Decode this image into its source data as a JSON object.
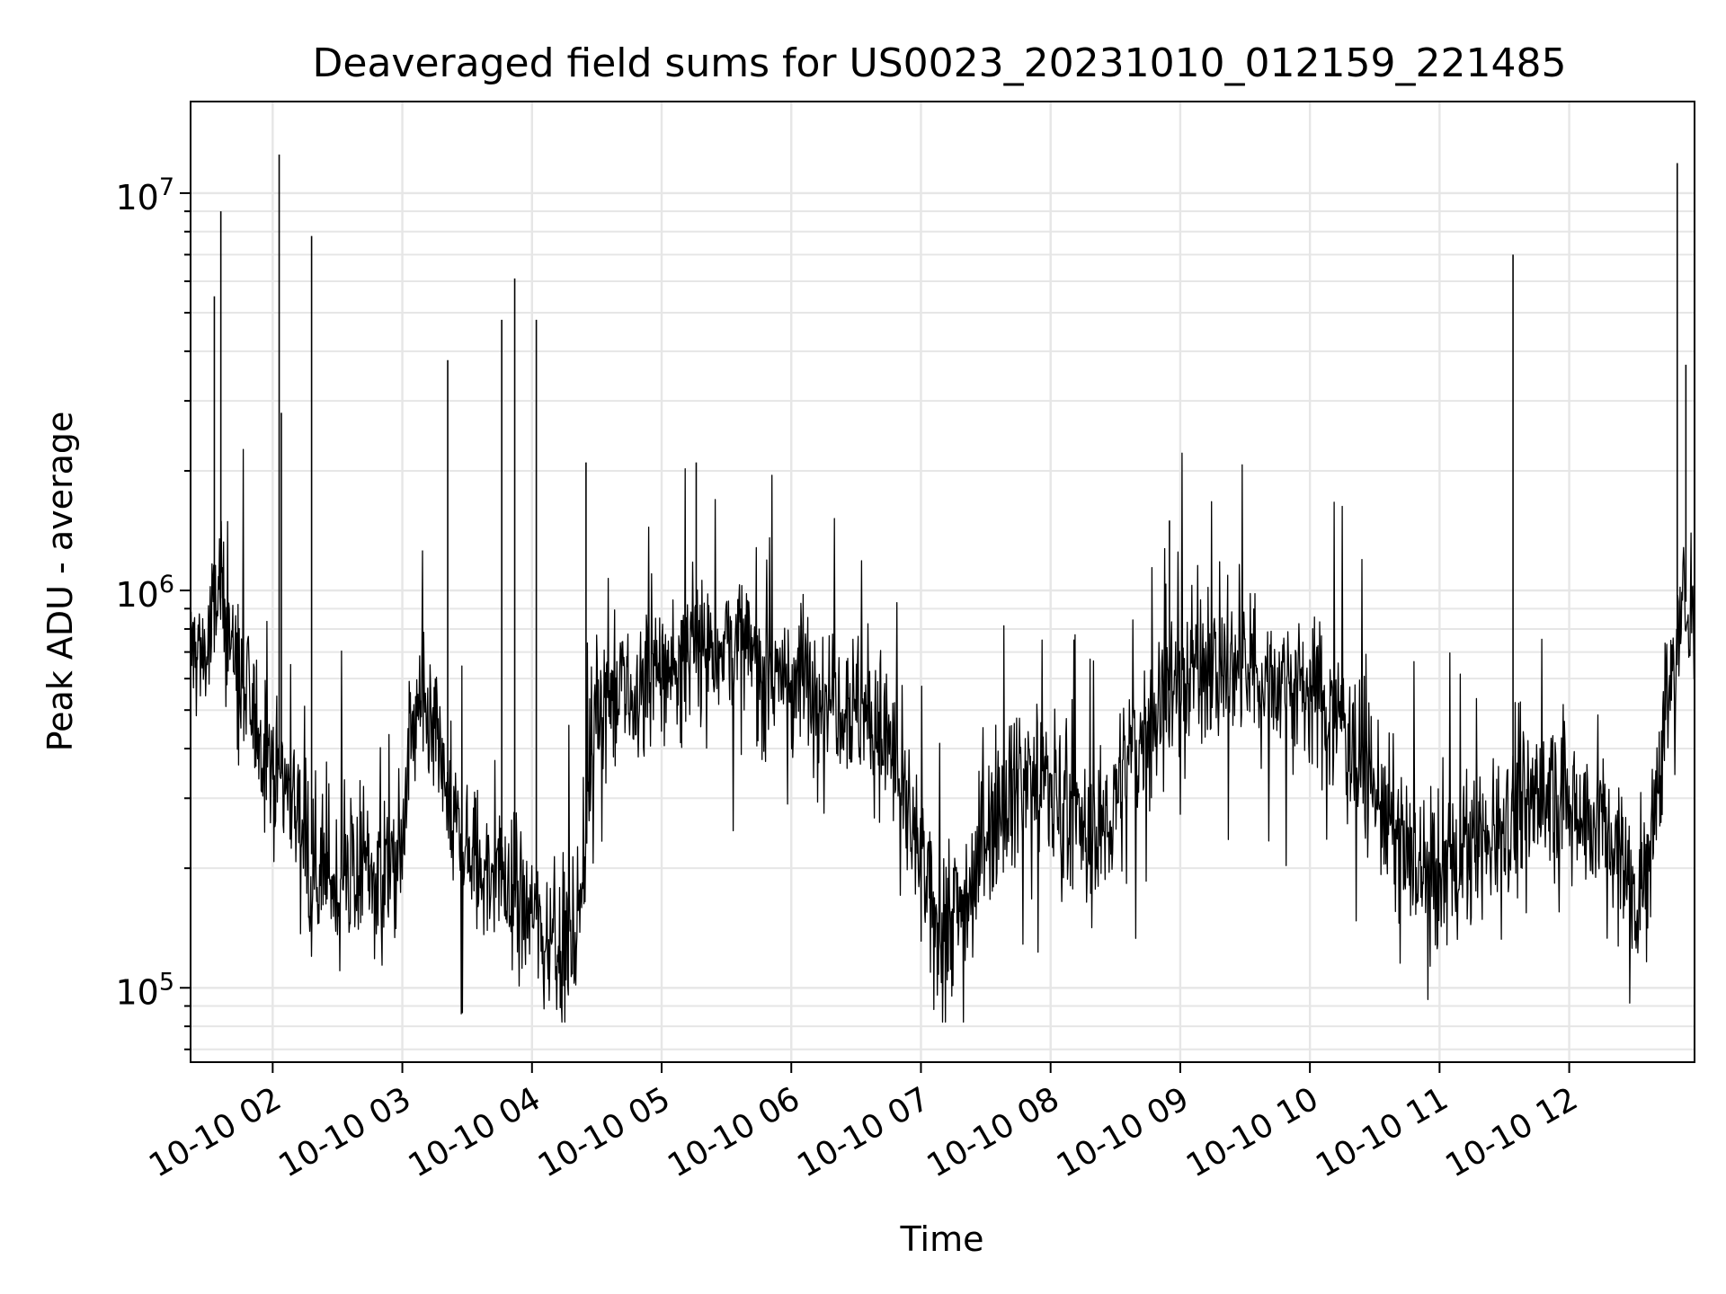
{
  "chart_data": {
    "type": "line",
    "title": "Deaveraged field sums for US0023_20231010_012159_221485",
    "xlabel": "Time",
    "ylabel": "Peak ADU - average",
    "yscale": "log",
    "ylim": [
      65000,
      17000000
    ],
    "xlim": [
      "2023-10-10 01:22",
      "2023-10-10 12:58"
    ],
    "grid": true,
    "x_ticks": [
      "10-10 02",
      "10-10 03",
      "10-10 04",
      "10-10 05",
      "10-10 06",
      "10-10 07",
      "10-10 08",
      "10-10 09",
      "10-10 10",
      "10-10 11",
      "10-10 12"
    ],
    "y_ticks": [
      {
        "base": "10",
        "exp": "5",
        "value": 100000
      },
      {
        "base": "10",
        "exp": "6",
        "value": 1000000
      },
      {
        "base": "10",
        "exp": "7",
        "value": 10000000
      }
    ],
    "series": [
      {
        "color": "#000000",
        "x": [
          "2023-10-10 01:22",
          "2023-10-10 01:30",
          "2023-10-10 01:35",
          "2023-10-10 01:40",
          "2023-10-10 01:45",
          "2023-10-10 01:50",
          "2023-10-10 01:55",
          "2023-10-10 02:00",
          "2023-10-10 02:10",
          "2023-10-10 02:20",
          "2023-10-10 02:30",
          "2023-10-10 02:40",
          "2023-10-10 02:50",
          "2023-10-10 03:00",
          "2023-10-10 03:05",
          "2023-10-10 03:15",
          "2023-10-10 03:25",
          "2023-10-10 03:35",
          "2023-10-10 03:45",
          "2023-10-10 03:55",
          "2023-10-10 04:05",
          "2023-10-10 04:15",
          "2023-10-10 04:20",
          "2023-10-10 04:30",
          "2023-10-10 04:45",
          "2023-10-10 05:00",
          "2023-10-10 05:15",
          "2023-10-10 05:30",
          "2023-10-10 05:45",
          "2023-10-10 06:00",
          "2023-10-10 06:15",
          "2023-10-10 06:30",
          "2023-10-10 06:45",
          "2023-10-10 06:55",
          "2023-10-10 07:05",
          "2023-10-10 07:20",
          "2023-10-10 07:35",
          "2023-10-10 07:50",
          "2023-10-10 08:05",
          "2023-10-10 08:20",
          "2023-10-10 08:35",
          "2023-10-10 08:50",
          "2023-10-10 09:05",
          "2023-10-10 09:20",
          "2023-10-10 09:35",
          "2023-10-10 09:50",
          "2023-10-10 10:05",
          "2023-10-10 10:20",
          "2023-10-10 10:35",
          "2023-10-10 10:50",
          "2023-10-10 11:00",
          "2023-10-10 11:15",
          "2023-10-10 11:30",
          "2023-10-10 11:45",
          "2023-10-10 12:00",
          "2023-10-10 12:15",
          "2023-10-10 12:30",
          "2023-10-10 12:35",
          "2023-10-10 12:45",
          "2023-10-10 12:55",
          "2023-10-10 12:58"
        ],
        "y": [
          700000,
          700000,
          1000000,
          800000,
          550000,
          500000,
          420000,
          380000,
          300000,
          200000,
          180000,
          200000,
          190000,
          220000,
          500000,
          400000,
          250000,
          200000,
          190000,
          170000,
          140000,
          130000,
          130000,
          550000,
          520000,
          620000,
          700000,
          750000,
          650000,
          600000,
          580000,
          520000,
          420000,
          260000,
          150000,
          160000,
          300000,
          350000,
          300000,
          220000,
          350000,
          520000,
          650000,
          650000,
          600000,
          600000,
          540000,
          430000,
          270000,
          190000,
          190000,
          220000,
          270000,
          300000,
          300000,
          260000,
          180000,
          180000,
          520000,
          1000000,
          900000
        ]
      }
    ],
    "spikes": [
      {
        "x": "2023-10-10 01:33",
        "y": 5500000
      },
      {
        "x": "2023-10-10 01:36",
        "y": 9000000
      },
      {
        "x": "2023-10-10 02:03",
        "y": 12500000
      },
      {
        "x": "2023-10-10 02:04",
        "y": 2800000
      },
      {
        "x": "2023-10-10 02:18",
        "y": 7800000
      },
      {
        "x": "2023-10-10 03:21",
        "y": 3800000
      },
      {
        "x": "2023-10-10 03:46",
        "y": 4800000
      },
      {
        "x": "2023-10-10 03:52",
        "y": 6100000
      },
      {
        "x": "2023-10-10 04:02",
        "y": 4800000
      },
      {
        "x": "2023-10-10 04:25",
        "y": 2100000
      },
      {
        "x": "2023-10-10 05:16",
        "y": 2100000
      },
      {
        "x": "2023-10-10 08:55",
        "y": 1500000
      },
      {
        "x": "2023-10-10 11:34",
        "y": 7000000
      },
      {
        "x": "2023-10-10 12:50",
        "y": 11900000
      },
      {
        "x": "2023-10-10 12:54",
        "y": 3700000
      }
    ]
  }
}
